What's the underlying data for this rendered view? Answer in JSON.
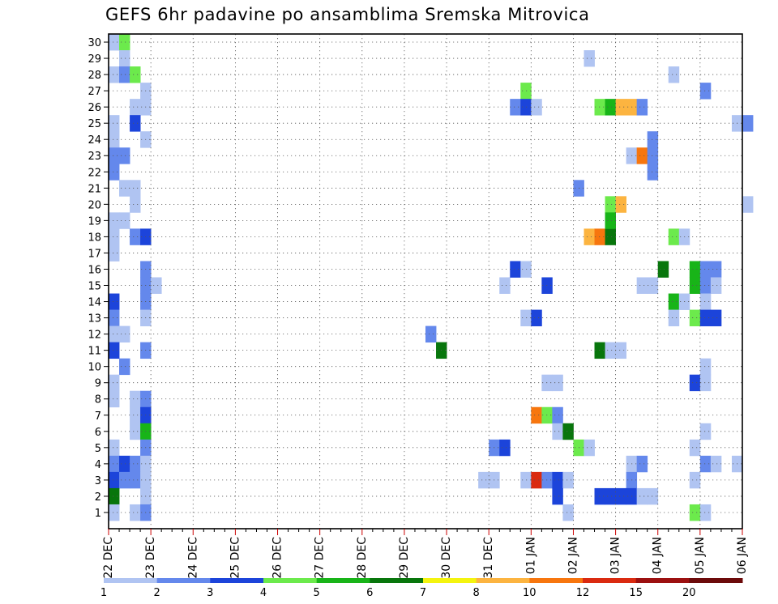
{
  "chart_data": {
    "type": "heatmap",
    "title": "GEFS 6hr padavine po ansamblima Sremska Mitrovica",
    "xlabel": "",
    "ylabel": "",
    "x_tick_labels": [
      "22 DEC",
      "23 DEC",
      "24 DEC",
      "25 DEC",
      "26 DEC",
      "27 DEC",
      "28 DEC",
      "29 DEC",
      "30 DEC",
      "31 DEC",
      "01 JAN",
      "02 JAN",
      "03 JAN",
      "04 JAN",
      "05 JAN",
      "06 JAN"
    ],
    "y_tick_labels": [
      1,
      2,
      3,
      4,
      5,
      6,
      7,
      8,
      9,
      10,
      11,
      12,
      13,
      14,
      15,
      16,
      17,
      18,
      19,
      20,
      21,
      22,
      23,
      24,
      25,
      26,
      27,
      28,
      29,
      30
    ],
    "ylim": [
      0,
      30
    ],
    "time_step_hours": 6,
    "grid": "dotted",
    "legend": {
      "placement": "bottom",
      "thresholds": [
        1,
        2,
        3,
        4,
        5,
        6,
        7,
        8,
        10,
        12,
        15,
        20
      ],
      "colors": [
        "#b0c4f2",
        "#6488ec",
        "#1c44da",
        "#6cea4c",
        "#18b418",
        "#08760c",
        "#f4f40e",
        "#fcb440",
        "#f7760e",
        "#da2a10",
        "#9c1010",
        "#6c0a0a"
      ]
    },
    "cells_note": "each cell: [ensemble member, 6h step index from 22 DEC 00Z, color index into legend.colors]",
    "cells": [
      [
        30,
        0,
        0
      ],
      [
        30,
        1,
        3
      ],
      [
        29,
        1,
        0
      ],
      [
        28,
        0,
        0
      ],
      [
        28,
        1,
        1
      ],
      [
        28,
        2,
        3
      ],
      [
        27,
        3,
        0
      ],
      [
        26,
        2,
        0
      ],
      [
        26,
        3,
        0
      ],
      [
        25,
        0,
        0
      ],
      [
        25,
        2,
        2
      ],
      [
        24,
        0,
        0
      ],
      [
        24,
        3,
        0
      ],
      [
        23,
        0,
        1
      ],
      [
        23,
        1,
        1
      ],
      [
        22,
        0,
        1
      ],
      [
        21,
        1,
        0
      ],
      [
        21,
        2,
        0
      ],
      [
        20,
        2,
        0
      ],
      [
        19,
        0,
        0
      ],
      [
        19,
        1,
        0
      ],
      [
        18,
        0,
        0
      ],
      [
        18,
        2,
        1
      ],
      [
        18,
        3,
        2
      ],
      [
        17,
        0,
        0
      ],
      [
        16,
        3,
        1
      ],
      [
        15,
        3,
        1
      ],
      [
        15,
        4,
        0
      ],
      [
        14,
        0,
        2
      ],
      [
        14,
        3,
        1
      ],
      [
        13,
        0,
        1
      ],
      [
        13,
        3,
        0
      ],
      [
        12,
        0,
        0
      ],
      [
        12,
        1,
        0
      ],
      [
        11,
        0,
        2
      ],
      [
        11,
        3,
        1
      ],
      [
        10,
        1,
        1
      ],
      [
        9,
        0,
        0
      ],
      [
        8,
        0,
        0
      ],
      [
        8,
        2,
        0
      ],
      [
        8,
        3,
        1
      ],
      [
        7,
        2,
        0
      ],
      [
        7,
        3,
        2
      ],
      [
        6,
        2,
        0
      ],
      [
        6,
        3,
        4
      ],
      [
        5,
        0,
        0
      ],
      [
        5,
        3,
        1
      ],
      [
        4,
        0,
        1
      ],
      [
        4,
        1,
        2
      ],
      [
        4,
        2,
        1
      ],
      [
        4,
        3,
        0
      ],
      [
        3,
        0,
        2
      ],
      [
        3,
        1,
        1
      ],
      [
        3,
        2,
        1
      ],
      [
        3,
        3,
        0
      ],
      [
        2,
        0,
        5
      ],
      [
        2,
        3,
        0
      ],
      [
        1,
        0,
        0
      ],
      [
        1,
        2,
        0
      ],
      [
        1,
        3,
        1
      ],
      [
        12,
        30,
        1
      ],
      [
        11,
        31,
        5
      ],
      [
        5,
        36,
        1
      ],
      [
        5,
        37,
        2
      ],
      [
        3,
        35,
        0
      ],
      [
        3,
        36,
        0
      ],
      [
        15,
        37,
        0
      ],
      [
        27,
        39,
        3
      ],
      [
        26,
        38,
        1
      ],
      [
        26,
        39,
        2
      ],
      [
        26,
        40,
        0
      ],
      [
        16,
        38,
        2
      ],
      [
        16,
        39,
        0
      ],
      [
        13,
        39,
        0
      ],
      [
        13,
        40,
        2
      ],
      [
        7,
        40,
        8
      ],
      [
        7,
        41,
        3
      ],
      [
        15,
        41,
        2
      ],
      [
        9,
        41,
        0
      ],
      [
        9,
        42,
        0
      ],
      [
        3,
        39,
        0
      ],
      [
        3,
        40,
        9
      ],
      [
        3,
        41,
        1
      ],
      [
        3,
        42,
        2
      ],
      [
        3,
        43,
        0
      ],
      [
        2,
        42,
        2
      ],
      [
        1,
        43,
        0
      ],
      [
        7,
        42,
        1
      ],
      [
        6,
        42,
        0
      ],
      [
        6,
        43,
        5
      ],
      [
        29,
        45,
        0
      ],
      [
        21,
        44,
        1
      ],
      [
        18,
        45,
        7
      ],
      [
        18,
        46,
        8
      ],
      [
        18,
        47,
        5
      ],
      [
        5,
        44,
        3
      ],
      [
        5,
        45,
        0
      ],
      [
        26,
        46,
        3
      ],
      [
        26,
        47,
        4
      ],
      [
        26,
        48,
        7
      ],
      [
        26,
        49,
        7
      ],
      [
        26,
        50,
        1
      ],
      [
        20,
        47,
        3
      ],
      [
        20,
        48,
        7
      ],
      [
        19,
        47,
        4
      ],
      [
        11,
        46,
        5
      ],
      [
        11,
        47,
        0
      ],
      [
        11,
        48,
        0
      ],
      [
        23,
        49,
        0
      ],
      [
        23,
        50,
        8
      ],
      [
        23,
        51,
        1
      ],
      [
        24,
        51,
        1
      ],
      [
        22,
        51,
        1
      ],
      [
        16,
        52,
        5
      ],
      [
        15,
        50,
        0
      ],
      [
        15,
        51,
        0
      ],
      [
        4,
        49,
        0
      ],
      [
        4,
        50,
        1
      ],
      [
        3,
        49,
        1
      ],
      [
        2,
        46,
        2
      ],
      [
        2,
        47,
        2
      ],
      [
        2,
        48,
        2
      ],
      [
        2,
        49,
        2
      ],
      [
        2,
        50,
        0
      ],
      [
        2,
        51,
        0
      ],
      [
        28,
        53,
        0
      ],
      [
        27,
        56,
        1
      ],
      [
        18,
        53,
        3
      ],
      [
        18,
        54,
        0
      ],
      [
        14,
        53,
        4
      ],
      [
        14,
        54,
        0
      ],
      [
        13,
        53,
        0
      ],
      [
        16,
        55,
        4
      ],
      [
        16,
        56,
        1
      ],
      [
        16,
        57,
        1
      ],
      [
        15,
        55,
        4
      ],
      [
        15,
        56,
        1
      ],
      [
        15,
        57,
        0
      ],
      [
        14,
        56,
        0
      ],
      [
        13,
        55,
        3
      ],
      [
        13,
        56,
        2
      ],
      [
        13,
        57,
        2
      ],
      [
        10,
        56,
        0
      ],
      [
        9,
        55,
        2
      ],
      [
        9,
        56,
        0
      ],
      [
        6,
        56,
        0
      ],
      [
        5,
        55,
        0
      ],
      [
        4,
        56,
        1
      ],
      [
        4,
        57,
        0
      ],
      [
        4,
        59,
        0
      ],
      [
        3,
        55,
        0
      ],
      [
        1,
        55,
        3
      ],
      [
        1,
        56,
        0
      ],
      [
        25,
        59,
        0
      ],
      [
        25,
        60,
        1
      ],
      [
        20,
        60,
        0
      ]
    ]
  }
}
